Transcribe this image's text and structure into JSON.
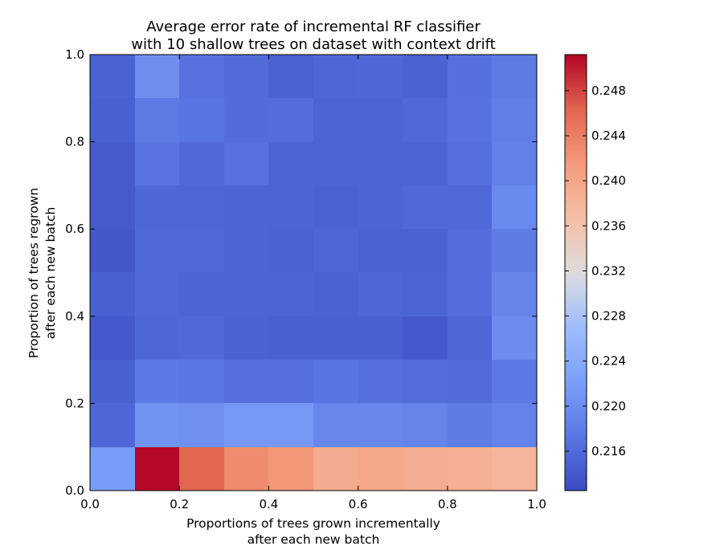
{
  "chart_data": {
    "type": "heatmap",
    "title": [
      "Average error rate of incremental RF classifier",
      "with 10 shallow trees on dataset with context drift"
    ],
    "xlabel": [
      "Proportions of trees grown incrementally",
      "after each new batch"
    ],
    "ylabel": [
      "Proportion of trees regrown",
      "after each new batch"
    ],
    "xlim": [
      0.0,
      1.0
    ],
    "ylim": [
      0.0,
      1.0
    ],
    "xticks": [
      "0.0",
      "0.2",
      "0.4",
      "0.6",
      "0.8",
      "1.0"
    ],
    "yticks": [
      "0.0",
      "0.2",
      "0.4",
      "0.6",
      "0.8",
      "1.0"
    ],
    "colormap": "coolwarm",
    "clim": [
      0.2125,
      0.2512
    ],
    "colorbar_ticks": [
      "0.216",
      "0.220",
      "0.224",
      "0.228",
      "0.232",
      "0.236",
      "0.240",
      "0.244",
      "0.248"
    ],
    "x_bins": [
      0.0,
      0.1,
      0.2,
      0.3,
      0.4,
      0.5,
      0.6,
      0.7,
      0.8,
      0.9
    ],
    "y_bins": [
      0.0,
      0.1,
      0.2,
      0.3,
      0.4,
      0.5,
      0.6,
      0.7,
      0.8,
      0.9
    ],
    "values": [
      [
        0.2218,
        0.251,
        0.2462,
        0.2428,
        0.2418,
        0.2393,
        0.2398,
        0.239,
        0.2388,
        0.238
      ],
      [
        0.2155,
        0.2208,
        0.2204,
        0.2215,
        0.2215,
        0.2193,
        0.2193,
        0.219,
        0.218,
        0.2188
      ],
      [
        0.2147,
        0.2177,
        0.2173,
        0.2165,
        0.2165,
        0.2172,
        0.2165,
        0.2163,
        0.216,
        0.2177
      ],
      [
        0.214,
        0.2155,
        0.2158,
        0.215,
        0.2148,
        0.2148,
        0.2148,
        0.214,
        0.2155,
        0.22
      ],
      [
        0.2147,
        0.2158,
        0.2153,
        0.2153,
        0.2153,
        0.215,
        0.2155,
        0.2153,
        0.2163,
        0.219
      ],
      [
        0.2138,
        0.2158,
        0.2158,
        0.2153,
        0.215,
        0.2155,
        0.215,
        0.215,
        0.2163,
        0.218
      ],
      [
        0.2143,
        0.2155,
        0.2155,
        0.2153,
        0.2153,
        0.215,
        0.2153,
        0.2158,
        0.2158,
        0.2195
      ],
      [
        0.2143,
        0.217,
        0.2158,
        0.2168,
        0.2152,
        0.2153,
        0.2153,
        0.2153,
        0.2165,
        0.2185
      ],
      [
        0.2148,
        0.2178,
        0.2172,
        0.2162,
        0.2163,
        0.2153,
        0.2153,
        0.2158,
        0.2168,
        0.2182
      ],
      [
        0.215,
        0.2203,
        0.2168,
        0.216,
        0.215,
        0.2155,
        0.2157,
        0.215,
        0.2167,
        0.2178
      ]
    ]
  }
}
